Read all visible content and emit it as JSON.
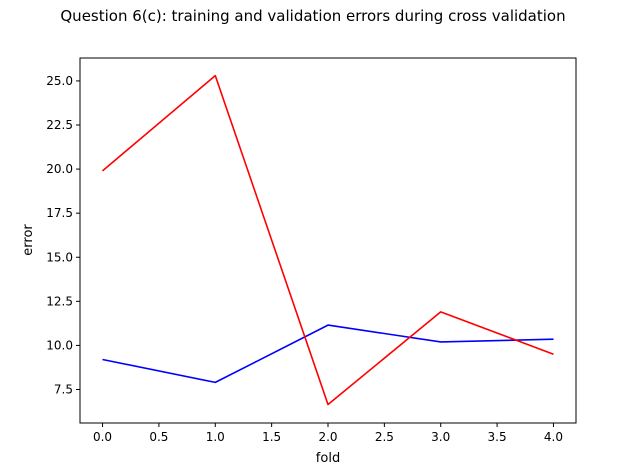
{
  "chart_data": {
    "type": "line",
    "title": "Question 6(c): training and validation errors during cross validation",
    "xlabel": "fold",
    "ylabel": "error",
    "x": [
      0,
      1,
      2,
      3,
      4
    ],
    "xlim": [
      -0.2,
      4.2
    ],
    "ylim": [
      5.6,
      26.3
    ],
    "xticks": [
      "0.0",
      "0.5",
      "1.0",
      "1.5",
      "2.0",
      "2.5",
      "3.0",
      "3.5",
      "4.0"
    ],
    "yticks": [
      "7.5",
      "10.0",
      "12.5",
      "15.0",
      "17.5",
      "20.0",
      "22.5",
      "25.0"
    ],
    "grid": false,
    "series": [
      {
        "color": "#0000ff",
        "values": [
          9.2,
          7.9,
          11.15,
          10.2,
          10.35
        ]
      },
      {
        "color": "#ff0000",
        "values": [
          19.9,
          25.3,
          6.65,
          11.9,
          9.5
        ]
      }
    ]
  }
}
